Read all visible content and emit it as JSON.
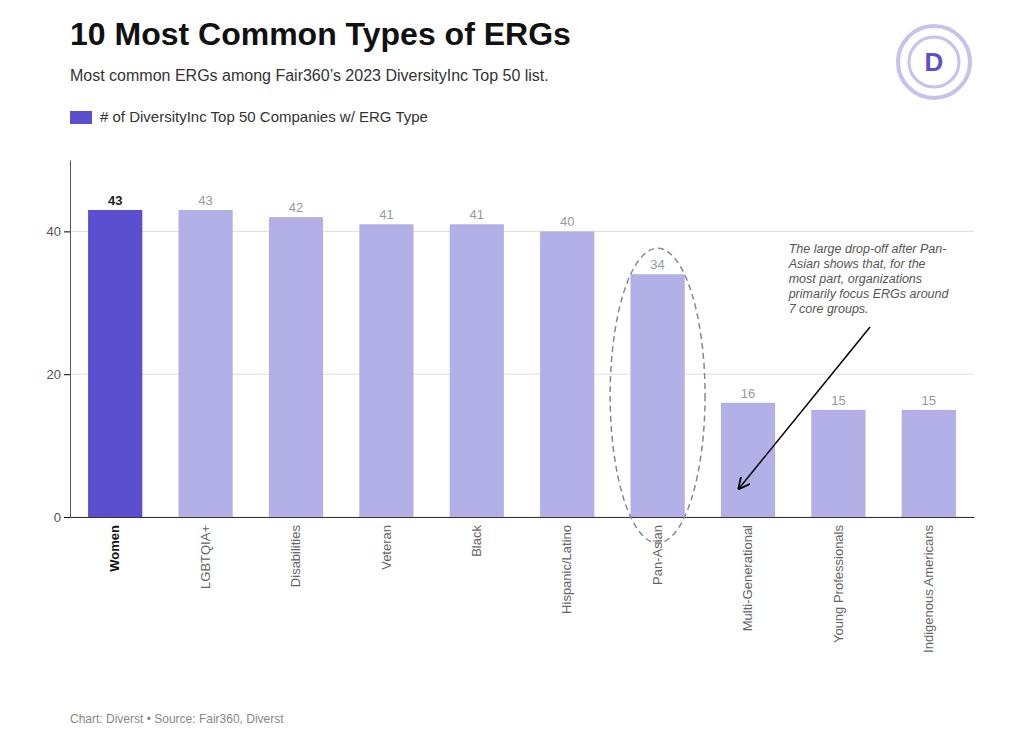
{
  "chart_data": {
    "type": "bar",
    "title": "10 Most Common Types of ERGs",
    "subtitle": "Most common ERGs among Fair360’s 2023 DiversityInc Top 50 list.",
    "footer": "Chart: Diverst • Source: Fair360, Diverst",
    "annotation": "The large drop-off after Pan-\nAsian shows that, for the\nmost part, organizations\nprimarily focus ERGs around\n7 core groups.",
    "logo": "D",
    "categories": [
      "Women",
      "LGBTQIA+",
      "Disabilities",
      "Veteran",
      "Black",
      "Hispanic/Latino",
      "Pan-Asian",
      "Multi-Generational",
      "Young Professionals",
      "Indigenous Americans"
    ],
    "series": [
      {
        "name": "# of DiversityInc Top 50 Companies w/ ERG Type",
        "color": "#5b4fcf",
        "colors": [
          "#5b4fcf",
          "#b3b0e8",
          "#b3b0e8",
          "#b3b0e8",
          "#b3b0e8",
          "#b3b0e8",
          "#b3b0e8",
          "#b3b0e8",
          "#b3b0e8",
          "#b3b0e8"
        ],
        "values": [
          43,
          43,
          42,
          41,
          41,
          40,
          34,
          16,
          15,
          15
        ]
      }
    ],
    "ylim": [
      0,
      50
    ],
    "yticks": [
      0,
      20,
      40
    ],
    "grid": true,
    "legend": "top-left",
    "data_labels": true
  }
}
